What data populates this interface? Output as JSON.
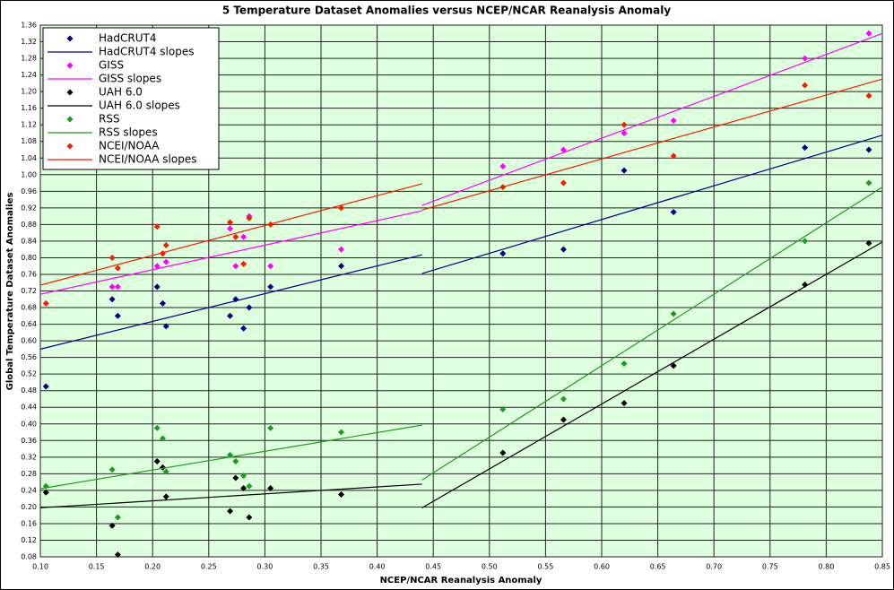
{
  "chart_data": {
    "type": "scatter",
    "title": "5 Temperature Dataset Anomalies versus NCEP/NCAR Reanalysis Anomaly",
    "x_label": "NCEP/NCAR Reanalysis Anomaly",
    "y_label": "Global Temperature Dataset Anomalies",
    "x": [
      0.105,
      0.164,
      0.169,
      0.204,
      0.209,
      0.212,
      0.269,
      0.274,
      0.281,
      0.286,
      0.305,
      0.368,
      0.512,
      0.566,
      0.62,
      0.664,
      0.781,
      0.838
    ],
    "series": [
      {
        "name": "HadCRUT4",
        "type": "scatter",
        "color": "#000080",
        "values": [
          0.49,
          0.7,
          0.66,
          0.73,
          0.69,
          0.635,
          0.66,
          0.7,
          0.63,
          0.68,
          0.73,
          0.78,
          0.81,
          0.82,
          1.01,
          0.91,
          1.065,
          1.06
        ]
      },
      {
        "name": "HadCRUT4 slopes",
        "type": "line",
        "color": "#000080",
        "x": [
          0.1,
          0.44,
          null,
          0.44,
          0.85
        ],
        "values": [
          0.58,
          0.807,
          null,
          0.762,
          1.095
        ]
      },
      {
        "name": "GISS",
        "type": "scatter",
        "color": "#ff00ff",
        "values": [
          null,
          0.73,
          0.73,
          0.78,
          0.81,
          0.79,
          0.87,
          0.78,
          0.85,
          0.9,
          0.78,
          0.82,
          1.02,
          1.06,
          1.1,
          1.13,
          1.28,
          1.34
        ]
      },
      {
        "name": "GISS slopes",
        "type": "line",
        "color": "#ff00ff",
        "x": [
          0.1,
          0.44,
          null,
          0.44,
          0.85
        ],
        "values": [
          0.712,
          0.913,
          null,
          0.926,
          1.34
        ]
      },
      {
        "name": "UAH 6.0",
        "type": "scatter",
        "color": "#000000",
        "values": [
          0.235,
          0.155,
          0.085,
          0.31,
          0.295,
          0.225,
          0.19,
          0.27,
          0.245,
          0.175,
          0.245,
          0.23,
          0.33,
          0.41,
          0.45,
          0.54,
          0.735,
          0.835
        ]
      },
      {
        "name": "UAH 6.0 slopes",
        "type": "line",
        "color": "#000000",
        "x": [
          0.1,
          0.44,
          null,
          0.44,
          0.85
        ],
        "values": [
          0.198,
          0.255,
          null,
          0.198,
          0.838
        ]
      },
      {
        "name": "RSS",
        "type": "scatter",
        "color": "#229922",
        "values": [
          0.25,
          0.29,
          0.175,
          0.39,
          0.365,
          0.285,
          0.325,
          0.31,
          0.275,
          0.25,
          0.39,
          0.38,
          0.435,
          0.46,
          0.545,
          0.665,
          0.84,
          0.98
        ]
      },
      {
        "name": "RSS slopes",
        "type": "line",
        "color": "#229922",
        "x": [
          0.1,
          0.44,
          null,
          0.44,
          0.85
        ],
        "values": [
          0.244,
          0.397,
          null,
          0.265,
          0.97
        ]
      },
      {
        "name": "NCEI/NOAA",
        "type": "scatter",
        "color": "#ee2200",
        "values": [
          0.69,
          0.8,
          0.775,
          0.875,
          0.81,
          0.83,
          0.885,
          0.85,
          0.785,
          0.895,
          0.88,
          0.92,
          0.97,
          0.98,
          1.12,
          1.045,
          1.215,
          1.19
        ]
      },
      {
        "name": "NCEI/NOAA slopes",
        "type": "line",
        "color": "#ee2200",
        "x": [
          0.1,
          0.44,
          null,
          0.44,
          0.85
        ],
        "values": [
          0.734,
          0.978,
          null,
          0.915,
          1.23
        ]
      }
    ],
    "xlim": [
      0.1,
      0.85
    ],
    "xticks": [
      {
        "value": 0.1,
        "label": "0.10"
      },
      {
        "value": 0.15,
        "label": "0.15"
      },
      {
        "value": 0.2,
        "label": "0.20"
      },
      {
        "value": 0.25,
        "label": "0.25"
      },
      {
        "value": 0.3,
        "label": "0.30"
      },
      {
        "value": 0.35,
        "label": "0.35"
      },
      {
        "value": 0.4,
        "label": "0.40"
      },
      {
        "value": 0.45,
        "label": "0.45"
      },
      {
        "value": 0.5,
        "label": "0.50"
      },
      {
        "value": 0.55,
        "label": "0.55"
      },
      {
        "value": 0.6,
        "label": "0.60"
      },
      {
        "value": 0.65,
        "label": "0.65"
      },
      {
        "value": 0.7,
        "label": "0.70"
      },
      {
        "value": 0.75,
        "label": "0.75"
      },
      {
        "value": 0.8,
        "label": "0.80"
      },
      {
        "value": 0.85,
        "label": "0.85"
      }
    ],
    "ylim": [
      0.08,
      1.36
    ],
    "yticks": [
      {
        "value": 0.08,
        "label": "0.08"
      },
      {
        "value": 0.12,
        "label": "0.12"
      },
      {
        "value": 0.16,
        "label": "0.16"
      },
      {
        "value": 0.2,
        "label": "0.20"
      },
      {
        "value": 0.24,
        "label": "0.24"
      },
      {
        "value": 0.28,
        "label": "0.28"
      },
      {
        "value": 0.32,
        "label": "0.32"
      },
      {
        "value": 0.36,
        "label": "0.36"
      },
      {
        "value": 0.4,
        "label": "0.40"
      },
      {
        "value": 0.44,
        "label": "0.44"
      },
      {
        "value": 0.48,
        "label": "0.48"
      },
      {
        "value": 0.52,
        "label": "0.52"
      },
      {
        "value": 0.56,
        "label": "0.56"
      },
      {
        "value": 0.6,
        "label": "0.60"
      },
      {
        "value": 0.64,
        "label": "0.64"
      },
      {
        "value": 0.68,
        "label": "0.68"
      },
      {
        "value": 0.72,
        "label": "0.72"
      },
      {
        "value": 0.76,
        "label": "0.76"
      },
      {
        "value": 0.8,
        "label": "0.80"
      },
      {
        "value": 0.84,
        "label": "0.84"
      },
      {
        "value": 0.88,
        "label": "0.88"
      },
      {
        "value": 0.92,
        "label": "0.92"
      },
      {
        "value": 0.96,
        "label": "0.96"
      },
      {
        "value": 1.0,
        "label": "1.00"
      },
      {
        "value": 1.04,
        "label": "1.04"
      },
      {
        "value": 1.08,
        "label": "1.08"
      },
      {
        "value": 1.12,
        "label": "1.12"
      },
      {
        "value": 1.16,
        "label": "1.16"
      },
      {
        "value": 1.2,
        "label": "1.20"
      },
      {
        "value": 1.24,
        "label": "1.24"
      },
      {
        "value": 1.28,
        "label": "1.28"
      },
      {
        "value": 1.32,
        "label": "1.32"
      },
      {
        "value": 1.36,
        "label": "1.36"
      }
    ],
    "grid": true,
    "background": "#ddffdd",
    "legend": "top-left"
  }
}
